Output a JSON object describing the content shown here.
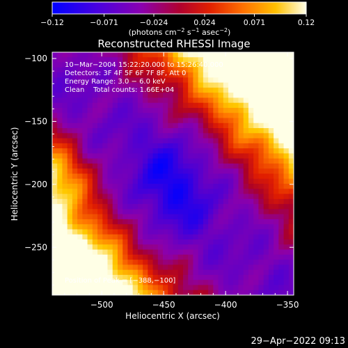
{
  "chart_data": {
    "type": "heatmap",
    "title": "Reconstructed RHESSI Image",
    "xlabel": "Heliocentric X (arcsec)",
    "ylabel": "Heliocentric Y (arcsec)",
    "xlim": [
      -540,
      -345
    ],
    "ylim": [
      -288,
      -95
    ],
    "x_ticks": [
      -500,
      -450,
      -400,
      -350
    ],
    "x_tick_labels": [
      "−500",
      "−450",
      "−400",
      "−350"
    ],
    "y_ticks": [
      -100,
      -150,
      -200,
      -250
    ],
    "y_tick_labels": [
      "−100",
      "−150",
      "−200",
      "−250"
    ],
    "colorbar": {
      "range": [
        -0.12,
        0.12
      ],
      "ticks": [
        -0.12,
        -0.071,
        -0.024,
        0.024,
        0.071,
        0.12
      ],
      "tick_labels": [
        "−0.12",
        "−0.071",
        "−0.024",
        "0.024",
        "0.071",
        "0.12"
      ],
      "unit_prefix": "(photons cm",
      "unit_exp1": "−2",
      "unit_mid": " s",
      "unit_exp2": "−1",
      "unit_mid2": " asec",
      "unit_exp3": "−2",
      "unit_suffix": ")",
      "colors": [
        "#0000ff",
        "#5000c8",
        "#8000a0",
        "#c00020",
        "#ff6000",
        "#ffc000",
        "#ffffe0"
      ]
    },
    "annotations": {
      "time_range": "10−Mar−2004 15:22:20.000 to 15:26:40.000",
      "detectors": "Detectors: 3F 4F 5F 6F 7F 8F, Att 0",
      "energy": "Energy Range: 3.0 − 6.0 keV",
      "clean": "Clean    Total counts: 1.66E+04",
      "peak": "Position of Peak = [−388,−100]"
    },
    "peak_position": [
      -388,
      -100
    ],
    "total_counts": 16600,
    "date_stamp": "29−Apr−2022 09:13"
  }
}
